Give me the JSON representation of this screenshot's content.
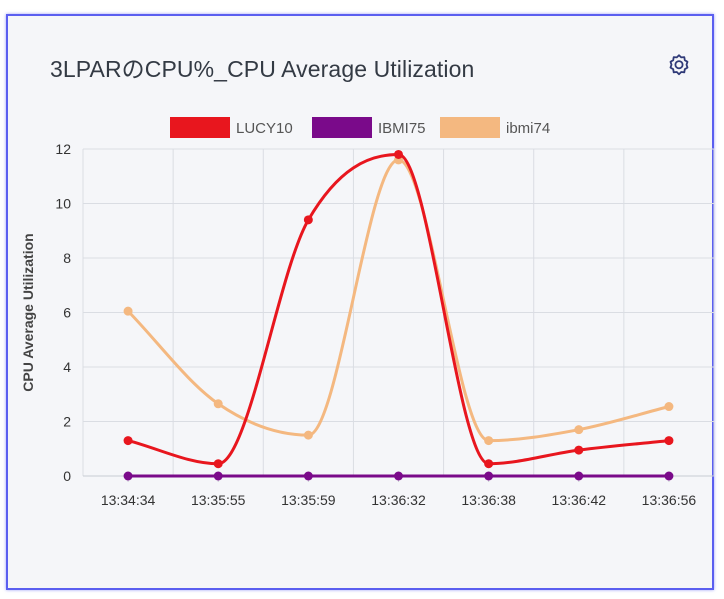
{
  "widget": {
    "title": "3LPARのCPU%_CPU Average Utilization",
    "settings_icon": "gear-icon"
  },
  "chart_data": {
    "type": "line",
    "title": "3LPARのCPU%_CPU Average Utilization",
    "xlabel": "",
    "ylabel": "CPU Average Utilization",
    "ylim": [
      0,
      12
    ],
    "yticks": [
      0,
      2,
      4,
      6,
      8,
      10,
      12
    ],
    "grid": true,
    "legend_position": "top-center",
    "categories": [
      "13:34:34",
      "13:35:55",
      "13:35:59",
      "13:36:32",
      "13:36:38",
      "13:36:42",
      "13:36:56"
    ],
    "series": [
      {
        "name": "LUCY10",
        "color": "#e8161e",
        "values": [
          1.3,
          0.45,
          9.4,
          11.8,
          0.45,
          0.95,
          1.3
        ]
      },
      {
        "name": "IBMI75",
        "color": "#7a0a8a",
        "values": [
          0,
          0,
          0,
          0,
          0,
          0,
          0
        ]
      },
      {
        "name": "ibmi74",
        "color": "#f4b880",
        "values": [
          6.05,
          2.65,
          1.5,
          11.6,
          1.3,
          1.7,
          2.55
        ]
      }
    ]
  }
}
